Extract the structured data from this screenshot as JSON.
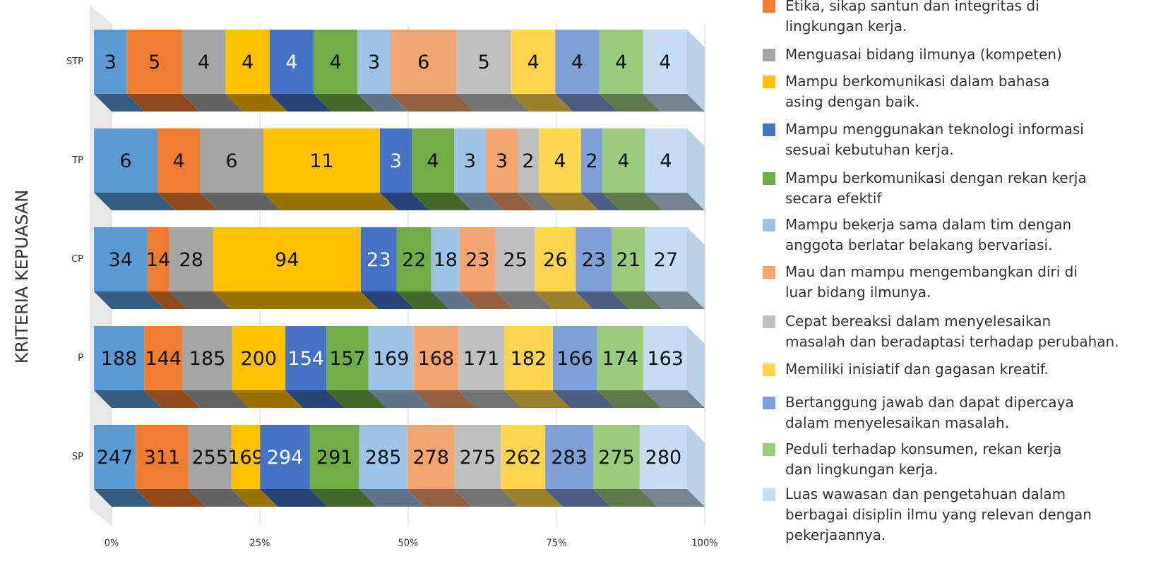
{
  "chart_data": {
    "type": "stacked-bar-100",
    "y_axis_label": "KRITERIA KEPUASAN",
    "categories": [
      "STP",
      "TP",
      "CP",
      "P",
      "SP"
    ],
    "xlim": [
      0,
      100
    ],
    "xticks": [
      {
        "value": 0,
        "label": "0%"
      },
      {
        "value": 25,
        "label": "25%"
      },
      {
        "value": 50,
        "label": "50%"
      },
      {
        "value": 75,
        "label": "75%"
      },
      {
        "value": 100,
        "label": "100%"
      }
    ],
    "grid": true,
    "series": [
      {
        "name": null,
        "color": "#5b9bd5",
        "values": [
          3,
          6,
          34,
          188,
          247
        ]
      },
      {
        "name": "Etika, sikap santun dan integritas di\nlingkungan kerja.",
        "color": "#ed7d31",
        "values": [
          5,
          4,
          14,
          144,
          311
        ]
      },
      {
        "name": "Menguasai bidang ilmunya (kompeten)",
        "color": "#a5a5a5",
        "values": [
          4,
          6,
          28,
          185,
          255
        ]
      },
      {
        "name": "Mampu berkomunikasi dalam bahasa\nasing dengan baik.",
        "color": "#ffc000",
        "values": [
          4,
          11,
          94,
          200,
          169
        ]
      },
      {
        "name": "Mampu menggunakan teknologi informasi\nsesuai kebutuhan kerja.",
        "color": "#4472c4",
        "values": [
          4,
          3,
          23,
          154,
          294
        ]
      },
      {
        "name": "Mampu berkomunikasi dengan rekan kerja\nsecara efektif",
        "color": "#70ad47",
        "values": [
          4,
          4,
          22,
          157,
          291
        ]
      },
      {
        "name": "Mampu bekerja sama dalam tim dengan\nanggota berlatar belakang bervariasi.",
        "color": "#9dc3e6",
        "values": [
          3,
          3,
          18,
          169,
          285
        ]
      },
      {
        "name": "Mau dan mampu mengembangkan diri di\nluar bidang ilmunya.",
        "color": "#f4a46e",
        "values": [
          6,
          3,
          23,
          168,
          278
        ]
      },
      {
        "name": "Cepat bereaksi dalam menyelesaikan\nmasalah dan beradaptasi terhadap perubahan.",
        "color": "#bfbfbf",
        "values": [
          5,
          2,
          25,
          171,
          275
        ]
      },
      {
        "name": "Memiliki inisiatif dan gagasan kreatif.",
        "color": "#ffd54f",
        "values": [
          4,
          4,
          26,
          182,
          262
        ]
      },
      {
        "name": "Bertanggung jawab dan dapat dipercaya\ndalam menyelesaikan masalah.",
        "color": "#7f9fd8",
        "values": [
          4,
          2,
          23,
          166,
          283
        ]
      },
      {
        "name": "Peduli terhadap konsumen, rekan kerja\ndan lingkungan kerja.",
        "color": "#9ccb7e",
        "values": [
          4,
          4,
          21,
          174,
          275
        ]
      },
      {
        "name": "Luas wawasan dan pengetahuan dalam\nberbagai disiplin ilmu yang relevan dengan\npekerjaannya.",
        "color": "#c5dcf2",
        "values": [
          4,
          4,
          27,
          163,
          280
        ]
      }
    ]
  }
}
